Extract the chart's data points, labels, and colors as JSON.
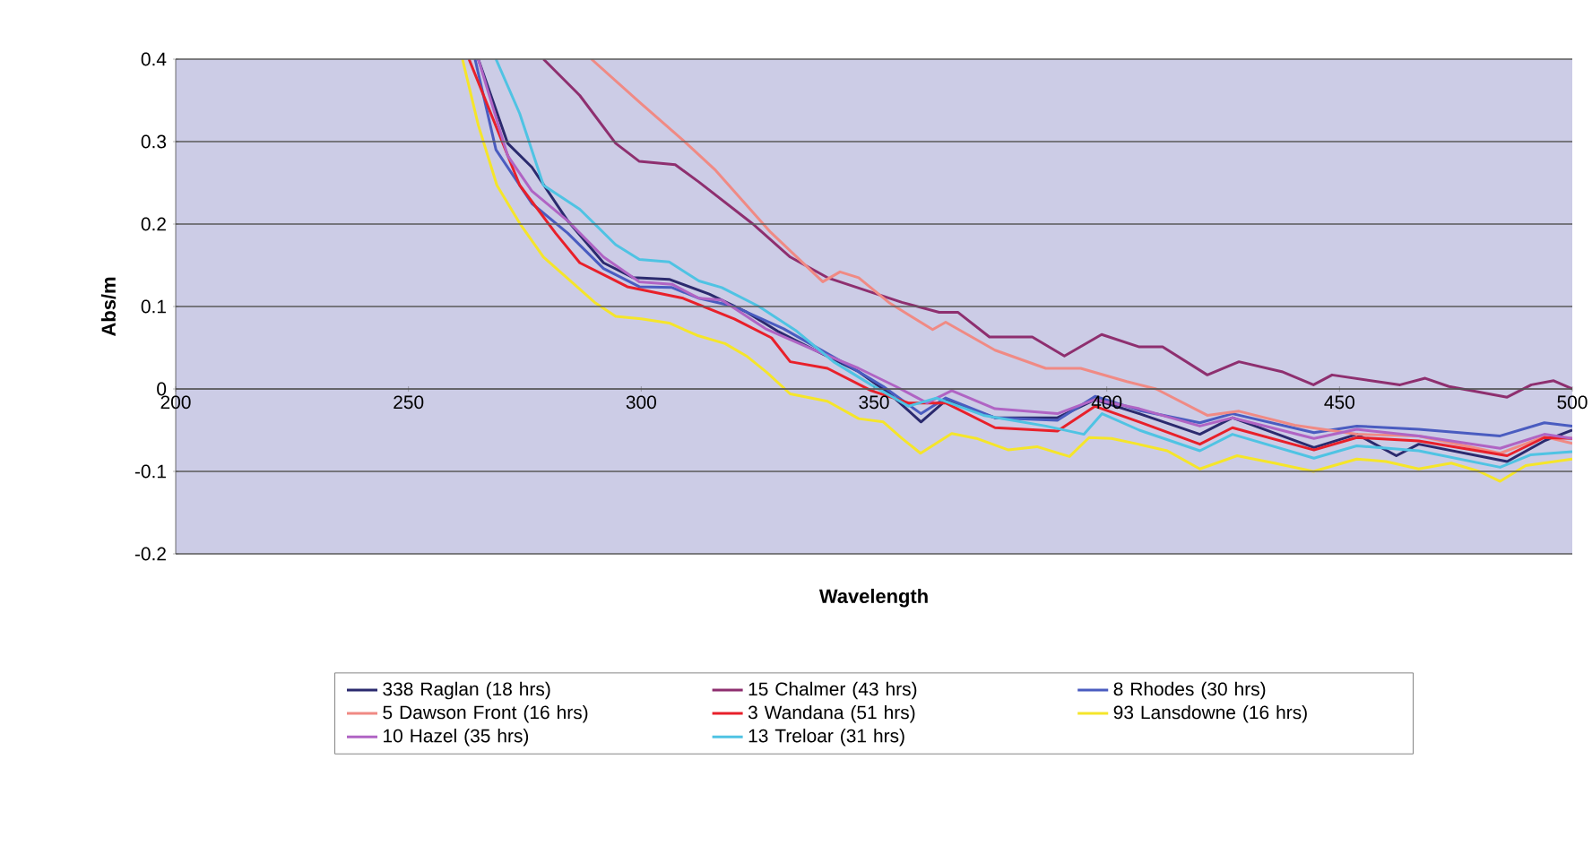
{
  "chart_data": {
    "type": "line",
    "xlabel": "Wavelength",
    "ylabel": "Abs/m",
    "xlim": [
      200,
      500
    ],
    "ylim": [
      -0.2,
      0.4
    ],
    "xticks": [
      200,
      250,
      300,
      350,
      400,
      450,
      500
    ],
    "yticks": [
      -0.2,
      -0.1,
      0,
      0.1,
      0.2,
      0.3,
      0.4
    ],
    "grid": "y",
    "legend": "bottom",
    "series": [
      {
        "name": "338 Raglan (18 hrs)",
        "color": "#2b2a6e",
        "x": [
          265,
          271.3,
          276.5,
          284.2,
          291.9,
          298.3,
          306,
          314.6,
          322.7,
          329.3,
          337.3,
          346.7,
          353.4,
          360.1,
          365.4,
          376,
          389.4,
          397.5,
          407,
          420,
          427,
          444.5,
          453.7,
          462.2,
          467,
          486,
          494,
          500
        ],
        "values": [
          0.4,
          0.298,
          0.269,
          0.204,
          0.153,
          0.135,
          0.133,
          0.115,
          0.093,
          0.07,
          0.047,
          0.021,
          -0.006,
          -0.04,
          -0.014,
          -0.035,
          -0.035,
          -0.013,
          -0.03,
          -0.055,
          -0.035,
          -0.071,
          -0.055,
          -0.081,
          -0.067,
          -0.088,
          -0.063,
          -0.05
        ]
      },
      {
        "name": "15 Chalmer (43 hrs)",
        "color": "#8e2f6f",
        "x": [
          279,
          286.8,
          294.5,
          299.6,
          307.3,
          312.4,
          324,
          332,
          340,
          348,
          356,
          364,
          368,
          374.8,
          384,
          390.9,
          398.9,
          407,
          412,
          421.6,
          428.4,
          437.6,
          444.4,
          448.4,
          463,
          468.4,
          473.5,
          486,
          491.2,
          496,
          500
        ],
        "values": [
          0.4,
          0.356,
          0.298,
          0.276,
          0.272,
          0.251,
          0.2,
          0.16,
          0.135,
          0.12,
          0.105,
          0.093,
          0.093,
          0.063,
          0.063,
          0.04,
          0.066,
          0.051,
          0.051,
          0.017,
          0.033,
          0.021,
          0.005,
          0.017,
          0.005,
          0.013,
          0.003,
          -0.01,
          0.005,
          0.01,
          0.0
        ]
      },
      {
        "name": "8 Rhodes (30 hrs)",
        "color": "#4a5cc0",
        "x": [
          264.3,
          268.8,
          276.5,
          284.2,
          291.9,
          299.6,
          306.6,
          312.4,
          320,
          330.6,
          344,
          352,
          360.1,
          365.4,
          376,
          389.4,
          397.5,
          407,
          420,
          427,
          444.5,
          453.7,
          467,
          484.5,
          494,
          500
        ],
        "values": [
          0.4,
          0.29,
          0.225,
          0.189,
          0.146,
          0.124,
          0.123,
          0.11,
          0.1,
          0.073,
          0.03,
          0.003,
          -0.03,
          -0.011,
          -0.035,
          -0.038,
          -0.009,
          -0.026,
          -0.041,
          -0.03,
          -0.053,
          -0.045,
          -0.049,
          -0.057,
          -0.041,
          -0.045
        ]
      },
      {
        "name": "5 Dawson Front (16 hrs)",
        "color": "#f08a84",
        "x": [
          289.3,
          299.6,
          309.7,
          316,
          327.8,
          339,
          342.7,
          346.7,
          353.4,
          362.6,
          365.4,
          376,
          386.9,
          394.4,
          404.3,
          410.6,
          421.6,
          428.4,
          440.4,
          453.7,
          467,
          484.5,
          494,
          500
        ],
        "values": [
          0.4,
          0.348,
          0.298,
          0.265,
          0.19,
          0.13,
          0.142,
          0.135,
          0.104,
          0.072,
          0.081,
          0.047,
          0.025,
          0.025,
          0.009,
          0.0,
          -0.032,
          -0.027,
          -0.044,
          -0.055,
          -0.057,
          -0.078,
          -0.058,
          -0.066
        ]
      },
      {
        "name": "3 Wandana (51 hrs)",
        "color": "#e8202a",
        "x": [
          263,
          273.9,
          281.6,
          286.8,
          293.2,
          297,
          309,
          320,
          328,
          332,
          340,
          349.4,
          357.4,
          365.4,
          376,
          389.4,
          397.5,
          407,
          420,
          427,
          444.5,
          453.7,
          467,
          486,
          494,
          500
        ],
        "values": [
          0.4,
          0.247,
          0.189,
          0.153,
          0.135,
          0.124,
          0.11,
          0.085,
          0.062,
          0.033,
          0.025,
          -0.002,
          -0.017,
          -0.017,
          -0.047,
          -0.051,
          -0.021,
          -0.04,
          -0.067,
          -0.047,
          -0.074,
          -0.059,
          -0.063,
          -0.081,
          -0.059,
          -0.06
        ]
      },
      {
        "name": "93 Lansdowne (16 hrs)",
        "color": "#f5e52a",
        "x": [
          261.6,
          265,
          269,
          274,
          279,
          285,
          290,
          294.5,
          300,
          306,
          312,
          318,
          322.6,
          327,
          332,
          340,
          346.7,
          352,
          356,
          360,
          366.7,
          372,
          378.9,
          385,
          392,
          396.2,
          401,
          406.8,
          413,
          420,
          428,
          436,
          444.4,
          453.7,
          460,
          467,
          474,
          480,
          484.5,
          490,
          500
        ],
        "values": [
          0.4,
          0.32,
          0.247,
          0.2,
          0.16,
          0.13,
          0.105,
          0.088,
          0.085,
          0.08,
          0.065,
          0.055,
          0.04,
          0.02,
          -0.006,
          -0.015,
          -0.036,
          -0.04,
          -0.06,
          -0.078,
          -0.054,
          -0.06,
          -0.074,
          -0.07,
          -0.082,
          -0.059,
          -0.06,
          -0.067,
          -0.075,
          -0.097,
          -0.081,
          -0.09,
          -0.1,
          -0.085,
          -0.088,
          -0.097,
          -0.09,
          -0.1,
          -0.112,
          -0.093,
          -0.085
        ]
      },
      {
        "name": "10 Hazel (35 hrs)",
        "color": "#b064c4",
        "x": [
          265,
          271.3,
          276.5,
          284.2,
          291.9,
          299.6,
          306.6,
          312.4,
          317.3,
          326.7,
          337.3,
          346.7,
          354.7,
          361.4,
          366.7,
          376,
          389.4,
          397.5,
          407,
          420,
          427,
          444.5,
          453.7,
          467,
          484.5,
          494,
          500
        ],
        "values": [
          0.4,
          0.283,
          0.24,
          0.204,
          0.16,
          0.13,
          0.127,
          0.11,
          0.108,
          0.073,
          0.047,
          0.025,
          0.003,
          -0.017,
          -0.002,
          -0.024,
          -0.03,
          -0.013,
          -0.024,
          -0.045,
          -0.035,
          -0.06,
          -0.049,
          -0.057,
          -0.072,
          -0.055,
          -0.06
        ]
      },
      {
        "name": "13 Treloar (31 hrs)",
        "color": "#4fc3e3",
        "x": [
          268.8,
          273.9,
          279,
          286.8,
          294.5,
          299.6,
          306,
          312.4,
          317.3,
          325.3,
          333.4,
          341.3,
          349.4,
          357.4,
          363.4,
          373.5,
          386.9,
          395.1,
          399,
          407,
          420,
          427,
          444.5,
          453.7,
          467,
          484.5,
          491,
          500
        ],
        "values": [
          0.4,
          0.334,
          0.247,
          0.218,
          0.175,
          0.157,
          0.154,
          0.131,
          0.123,
          0.1,
          0.07,
          0.033,
          0.005,
          -0.021,
          -0.011,
          -0.032,
          -0.045,
          -0.055,
          -0.03,
          -0.05,
          -0.075,
          -0.055,
          -0.084,
          -0.069,
          -0.075,
          -0.095,
          -0.08,
          -0.076
        ]
      }
    ]
  }
}
